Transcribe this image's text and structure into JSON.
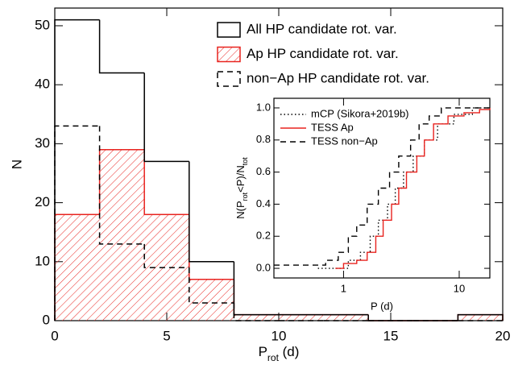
{
  "chart_data": [
    {
      "type": "histogram",
      "x_label": [
        "P",
        "rot",
        " (d)"
      ],
      "y_label": "N",
      "bins": [
        0,
        2,
        4,
        6,
        8,
        10,
        12,
        14,
        16,
        18,
        20
      ],
      "series": [
        {
          "name": "All HP candidate rot. var.",
          "color": "#000000",
          "style": "solid",
          "values": [
            51,
            42,
            27,
            10,
            1,
            1,
            1,
            0,
            0,
            1
          ]
        },
        {
          "name": "Ap HP candidate rot. var.",
          "color": "#e8231f",
          "style": "hatched",
          "values": [
            18,
            29,
            18,
            7,
            1,
            1,
            1,
            0,
            0,
            1
          ]
        },
        {
          "name": "non−Ap HP candidate rot. var.",
          "color": "#000000",
          "style": "dashed",
          "values": [
            33,
            13,
            9,
            3,
            0,
            0,
            0,
            0,
            0,
            0
          ]
        }
      ],
      "xlim": [
        0,
        20
      ],
      "ylim": [
        0,
        53
      ],
      "xticks": [
        0,
        5,
        10,
        15,
        20
      ],
      "yticks": [
        0,
        10,
        20,
        30,
        40,
        50
      ]
    },
    {
      "type": "step",
      "x_label": "P (d)",
      "y_label": [
        "N(P",
        "rot",
        "<P)/N",
        "tot"
      ],
      "log_x": true,
      "series": [
        {
          "name": "mCP (Sikora+2019b)",
          "color": "#000000",
          "style": "dotted",
          "x": [
            0.6,
            1.1,
            1.4,
            1.7,
            2.0,
            2.4,
            2.8,
            3.3,
            4.0,
            5.0,
            6.5,
            9,
            13,
            18.4
          ],
          "values": [
            0.0,
            0.05,
            0.1,
            0.2,
            0.3,
            0.4,
            0.5,
            0.6,
            0.7,
            0.8,
            0.9,
            0.96,
            1.0,
            1.0
          ]
        },
        {
          "name": "TESS Ap",
          "color": "#e8231f",
          "style": "solid",
          "x": [
            0.85,
            1.0,
            1.3,
            1.6,
            1.9,
            2.2,
            2.6,
            3.0,
            3.5,
            4.3,
            5.0,
            6.0,
            8,
            11,
            15,
            18.4
          ],
          "values": [
            0.0,
            0.03,
            0.05,
            0.1,
            0.2,
            0.3,
            0.4,
            0.5,
            0.6,
            0.7,
            0.8,
            0.9,
            0.95,
            0.97,
            0.99,
            1.0
          ]
        },
        {
          "name": "TESS non−Ap",
          "color": "#000000",
          "style": "dashed",
          "x": [
            0.25,
            0.6,
            0.7,
            0.9,
            1.1,
            1.3,
            1.6,
            2.0,
            2.5,
            3.0,
            3.8,
            4.5,
            5.5,
            7,
            18.4
          ],
          "values": [
            0.02,
            0.02,
            0.05,
            0.1,
            0.2,
            0.27,
            0.4,
            0.5,
            0.6,
            0.7,
            0.8,
            0.9,
            0.95,
            1.0,
            1.0
          ]
        }
      ],
      "xlim": [
        0.25,
        18.4
      ],
      "ylim": [
        -0.06,
        1.06
      ],
      "xticks": [
        1,
        10
      ],
      "yticks": [
        {
          "value": 0,
          "label": "0.0"
        },
        0.2,
        0.4,
        0.6,
        0.8,
        {
          "value": 1,
          "label": "1.0"
        }
      ]
    }
  ]
}
